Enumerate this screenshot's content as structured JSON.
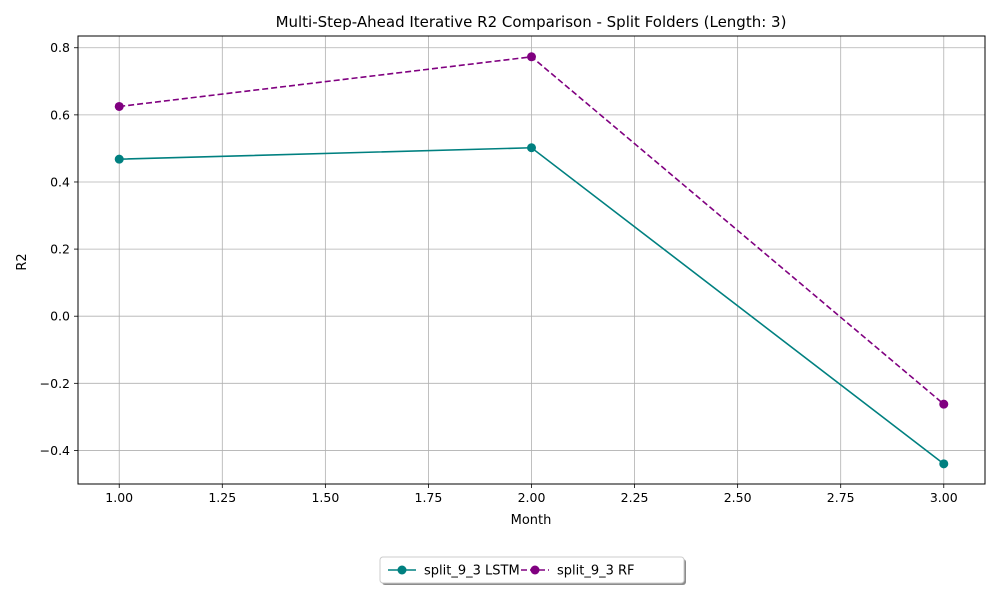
{
  "chart_data": {
    "type": "line",
    "title": "Multi-Step-Ahead Iterative R2 Comparison - Split Folders (Length: 3)",
    "xlabel": "Month",
    "ylabel": "R2",
    "xlim": [
      0.9,
      3.1
    ],
    "ylim": [
      -0.5,
      0.835
    ],
    "xticks": [
      1.0,
      1.25,
      1.5,
      1.75,
      2.0,
      2.25,
      2.5,
      2.75,
      3.0
    ],
    "xtick_labels": [
      "1.00",
      "1.25",
      "1.50",
      "1.75",
      "2.00",
      "2.25",
      "2.50",
      "2.75",
      "3.00"
    ],
    "yticks": [
      -0.4,
      -0.2,
      0.0,
      0.2,
      0.4,
      0.6,
      0.8
    ],
    "ytick_labels": [
      "−0.4",
      "−0.2",
      "0.0",
      "0.2",
      "0.4",
      "0.6",
      "0.8"
    ],
    "grid": true,
    "legend_position": "bottom-center-outside",
    "series": [
      {
        "name": "split_9_3 LSTM",
        "x": [
          1,
          2,
          3
        ],
        "y": [
          0.468,
          0.502,
          -0.44
        ],
        "color": "#008080",
        "style": "solid",
        "marker": "circle"
      },
      {
        "name": "split_9_3 RF",
        "x": [
          1,
          2,
          3
        ],
        "y": [
          0.625,
          0.773,
          -0.262
        ],
        "color": "#800080",
        "style": "dashed",
        "marker": "circle"
      }
    ]
  }
}
